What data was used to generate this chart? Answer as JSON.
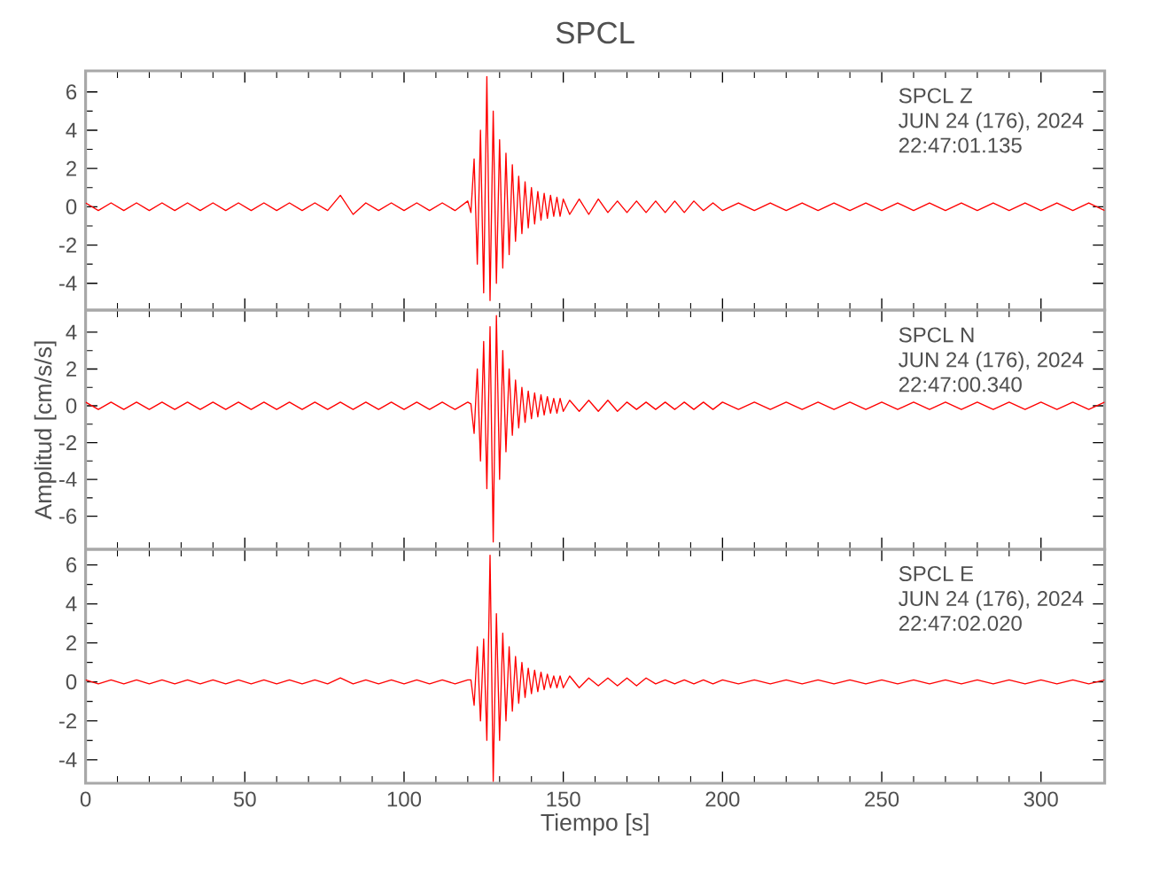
{
  "chart_data": [
    {
      "type": "line",
      "title": "SPCL",
      "color": "#ff0000",
      "tick_labels": "y",
      "annotations": [
        "SPCL  Z",
        "JUN 24 (176), 2024",
        "22:47:01.135"
      ],
      "xlim": [
        0,
        320
      ],
      "ylim": [
        -5.4,
        7.1
      ],
      "xticks": [
        0,
        50,
        100,
        150,
        200,
        250,
        300
      ],
      "yticks": [
        -4,
        -2,
        0,
        2,
        4,
        6
      ],
      "x": [
        0,
        4,
        8,
        12,
        16,
        20,
        24,
        28,
        32,
        36,
        40,
        44,
        48,
        52,
        56,
        60,
        64,
        68,
        72,
        76,
        80,
        84,
        88,
        92,
        96,
        100,
        104,
        108,
        112,
        116,
        120,
        121,
        122,
        123,
        124,
        125,
        126,
        127,
        128,
        129,
        130,
        131,
        132,
        133,
        134,
        135,
        136,
        137,
        138,
        139,
        140,
        141,
        142,
        143,
        144,
        145,
        146,
        147,
        148,
        149,
        150,
        152,
        155,
        158,
        161,
        164,
        167,
        170,
        173,
        176,
        179,
        182,
        185,
        188,
        191,
        194,
        197,
        200,
        205,
        210,
        215,
        220,
        225,
        230,
        235,
        240,
        245,
        250,
        255,
        260,
        265,
        270,
        275,
        280,
        285,
        290,
        295,
        300,
        305,
        310,
        315,
        320
      ],
      "values": [
        0.2,
        -0.2,
        0.2,
        -0.2,
        0.2,
        -0.2,
        0.2,
        -0.2,
        0.2,
        -0.2,
        0.2,
        -0.2,
        0.2,
        -0.2,
        0.2,
        -0.2,
        0.2,
        -0.2,
        0.2,
        -0.2,
        0.6,
        -0.4,
        0.2,
        -0.2,
        0.2,
        -0.2,
        0.2,
        -0.2,
        0.2,
        -0.2,
        0.3,
        -0.3,
        2.5,
        -3.0,
        4.0,
        -4.5,
        6.8,
        -4.9,
        5.0,
        -4.0,
        3.5,
        -3.2,
        2.8,
        -2.5,
        2.2,
        -1.8,
        1.6,
        -1.4,
        1.3,
        -1.1,
        1.0,
        -0.9,
        0.8,
        -0.7,
        0.7,
        -0.6,
        0.6,
        -0.5,
        0.5,
        -0.5,
        0.4,
        -0.4,
        0.4,
        -0.4,
        0.4,
        -0.3,
        0.3,
        -0.3,
        0.3,
        -0.3,
        0.3,
        -0.3,
        0.3,
        -0.3,
        0.3,
        -0.2,
        0.2,
        -0.2,
        0.2,
        -0.2,
        0.2,
        -0.2,
        0.2,
        -0.2,
        0.2,
        -0.2,
        0.2,
        -0.2,
        0.2,
        -0.2,
        0.2,
        -0.2,
        0.2,
        -0.2,
        0.2,
        -0.2,
        0.2,
        -0.2,
        0.2,
        -0.2,
        0.2,
        -0.2
      ]
    },
    {
      "type": "line",
      "ylabel": "Amplitud [cm/s/s]",
      "color": "#ff0000",
      "tick_labels": "y",
      "annotations": [
        "SPCL  N",
        "JUN 24 (176), 2024",
        "22:47:00.340"
      ],
      "xlim": [
        0,
        320
      ],
      "ylim": [
        -7.8,
        5.2
      ],
      "xticks": [
        0,
        50,
        100,
        150,
        200,
        250,
        300
      ],
      "yticks": [
        -6,
        -4,
        -2,
        0,
        2,
        4
      ],
      "x": [
        0,
        4,
        8,
        12,
        16,
        20,
        24,
        28,
        32,
        36,
        40,
        44,
        48,
        52,
        56,
        60,
        64,
        68,
        72,
        76,
        80,
        84,
        88,
        92,
        96,
        100,
        104,
        108,
        112,
        116,
        120,
        121,
        122,
        123,
        124,
        125,
        126,
        127,
        128,
        129,
        130,
        131,
        132,
        133,
        134,
        135,
        136,
        137,
        138,
        139,
        140,
        141,
        142,
        143,
        144,
        145,
        146,
        147,
        148,
        149,
        150,
        152,
        155,
        158,
        161,
        164,
        167,
        170,
        173,
        176,
        179,
        182,
        185,
        188,
        191,
        194,
        197,
        200,
        205,
        210,
        215,
        220,
        225,
        230,
        235,
        240,
        245,
        250,
        255,
        260,
        265,
        270,
        275,
        280,
        285,
        290,
        295,
        300,
        305,
        310,
        315,
        320
      ],
      "values": [
        0.2,
        -0.2,
        0.2,
        -0.2,
        0.2,
        -0.2,
        0.2,
        -0.2,
        0.2,
        -0.2,
        0.2,
        -0.2,
        0.2,
        -0.2,
        0.2,
        -0.2,
        0.2,
        -0.2,
        0.2,
        -0.2,
        0.2,
        -0.2,
        0.2,
        -0.2,
        0.2,
        -0.2,
        0.2,
        -0.2,
        0.2,
        -0.2,
        0.2,
        0.1,
        -1.5,
        2.0,
        -3.0,
        3.5,
        -4.5,
        4.3,
        -7.4,
        4.9,
        -4.0,
        3.0,
        -2.5,
        2.0,
        -1.6,
        1.4,
        -1.2,
        1.0,
        -0.9,
        0.8,
        -0.7,
        0.7,
        -0.6,
        0.6,
        -0.5,
        0.5,
        -0.4,
        0.4,
        -0.4,
        0.4,
        -0.3,
        0.3,
        -0.3,
        0.3,
        -0.3,
        0.3,
        -0.3,
        0.2,
        -0.2,
        0.2,
        -0.2,
        0.2,
        -0.2,
        0.2,
        -0.2,
        0.2,
        -0.2,
        0.2,
        -0.2,
        0.2,
        -0.2,
        0.2,
        -0.2,
        0.2,
        -0.2,
        0.2,
        -0.2,
        0.2,
        -0.2,
        0.2,
        -0.2,
        0.2,
        -0.2,
        0.2,
        -0.2,
        0.2,
        -0.2,
        0.2,
        -0.2,
        0.2,
        -0.2,
        0.2
      ]
    },
    {
      "type": "line",
      "xlabel": "Tiempo [s]",
      "color": "#ff0000",
      "annotations": [
        "SPCL  E",
        "JUN 24 (176), 2024",
        "22:47:02.020"
      ],
      "xlim": [
        0,
        320
      ],
      "ylim": [
        -5.2,
        6.8
      ],
      "xticks": [
        0,
        50,
        100,
        150,
        200,
        250,
        300
      ],
      "yticks": [
        -4,
        -2,
        0,
        2,
        4,
        6
      ],
      "x": [
        0,
        4,
        8,
        12,
        16,
        20,
        24,
        28,
        32,
        36,
        40,
        44,
        48,
        52,
        56,
        60,
        64,
        68,
        72,
        76,
        80,
        84,
        88,
        92,
        96,
        100,
        104,
        108,
        112,
        116,
        120,
        121,
        122,
        123,
        124,
        125,
        126,
        127,
        128,
        129,
        130,
        131,
        132,
        133,
        134,
        135,
        136,
        137,
        138,
        139,
        140,
        141,
        142,
        143,
        144,
        145,
        146,
        147,
        148,
        149,
        150,
        152,
        155,
        158,
        161,
        164,
        167,
        170,
        173,
        176,
        179,
        182,
        185,
        188,
        191,
        194,
        197,
        200,
        205,
        210,
        215,
        220,
        225,
        230,
        235,
        240,
        245,
        250,
        255,
        260,
        265,
        270,
        275,
        280,
        285,
        290,
        295,
        300,
        305,
        310,
        315,
        320
      ],
      "values": [
        0.1,
        -0.1,
        0.1,
        -0.1,
        0.1,
        -0.1,
        0.1,
        -0.1,
        0.1,
        -0.1,
        0.1,
        -0.1,
        0.1,
        -0.1,
        0.1,
        -0.1,
        0.1,
        -0.1,
        0.1,
        -0.1,
        0.2,
        -0.1,
        0.1,
        -0.1,
        0.1,
        -0.1,
        0.1,
        -0.1,
        0.1,
        -0.1,
        0.1,
        0.1,
        -1.2,
        1.8,
        -2.0,
        2.2,
        -3.0,
        6.5,
        -5.1,
        3.5,
        -3.0,
        2.5,
        -2.0,
        1.8,
        -1.5,
        1.3,
        -1.1,
        1.0,
        -0.8,
        0.7,
        -0.6,
        0.6,
        -0.5,
        0.5,
        -0.4,
        0.4,
        -0.3,
        0.3,
        -0.3,
        0.3,
        -0.3,
        0.3,
        -0.3,
        0.2,
        -0.2,
        0.2,
        -0.2,
        0.2,
        -0.2,
        0.2,
        -0.1,
        0.1,
        -0.1,
        0.1,
        -0.1,
        0.1,
        -0.1,
        0.1,
        -0.1,
        0.1,
        -0.1,
        0.1,
        -0.1,
        0.1,
        -0.1,
        0.1,
        -0.1,
        0.1,
        -0.1,
        0.1,
        -0.1,
        0.1,
        -0.1,
        0.1,
        -0.1,
        0.1,
        -0.1,
        0.1,
        -0.1,
        0.1,
        -0.1,
        0.1
      ]
    }
  ]
}
